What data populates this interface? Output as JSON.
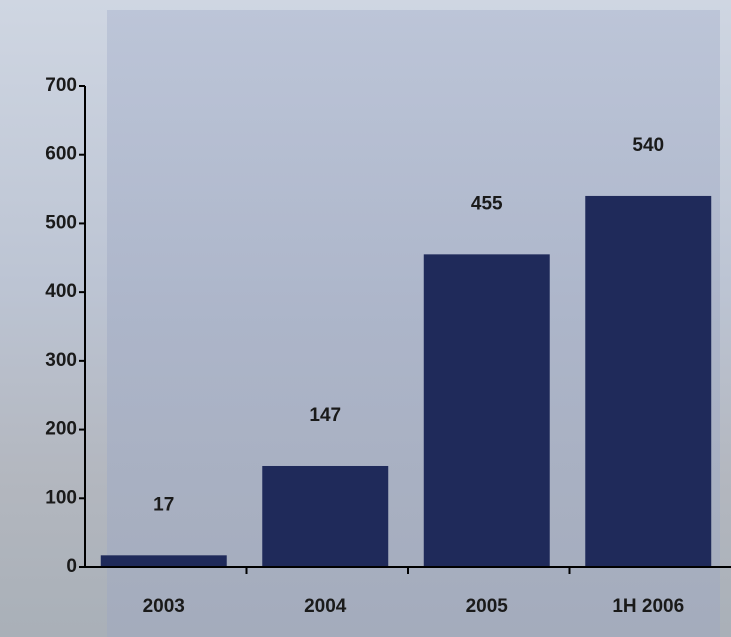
{
  "chart_data": {
    "type": "bar",
    "categories": [
      "2003",
      "2004",
      "2005",
      "1H 2006"
    ],
    "values": [
      17,
      147,
      455,
      540
    ],
    "color": "#1f2a5a",
    "ylim": [
      0,
      700
    ],
    "yticks": [
      0,
      100,
      200,
      300,
      400,
      500,
      600,
      700
    ],
    "grid": false
  }
}
